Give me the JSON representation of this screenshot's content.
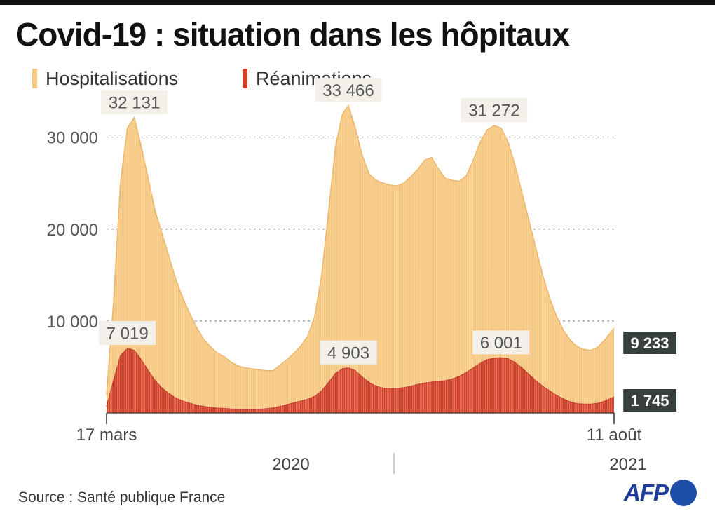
{
  "title": "Covid-19 : situation dans les hôpitaux",
  "legend": [
    {
      "label": "Hospitalisations",
      "color": "#f6c77f"
    },
    {
      "label": "Réanimations",
      "color": "#d2432a"
    }
  ],
  "source": "Source : Santé publique France",
  "logo": "AFP",
  "chart_data": {
    "type": "area",
    "title": "Covid-19 : situation dans les hôpitaux",
    "xlabel": "",
    "ylabel": "",
    "x_start": "2020-03-17",
    "x_end": "2021-08-11",
    "ylim": [
      0,
      36000
    ],
    "yticks": [
      {
        "value": 10000,
        "label": "10 000"
      },
      {
        "value": 20000,
        "label": "20 000"
      },
      {
        "value": 30000,
        "label": "30 000"
      }
    ],
    "grid": true,
    "xtick_labels": [
      {
        "date": "2020-03-17",
        "label": "17 mars"
      },
      {
        "date": "2021-08-11",
        "label": "11 août"
      }
    ],
    "year_labels": [
      {
        "date": "2020-07-15",
        "label": "2020"
      },
      {
        "date": "2021-08-11",
        "label": "2021"
      }
    ],
    "year_separator_date": "2021-01-01",
    "series": [
      {
        "name": "Hospitalisations",
        "color": "#f6c77f",
        "stroke": "#ebb15f",
        "points": [
          [
            "2020-03-17",
            2000
          ],
          [
            "2020-03-24",
            12000
          ],
          [
            "2020-03-31",
            25000
          ],
          [
            "2020-04-07",
            31000
          ],
          [
            "2020-04-14",
            32131
          ],
          [
            "2020-04-21",
            29000
          ],
          [
            "2020-04-28",
            25500
          ],
          [
            "2020-05-05",
            22000
          ],
          [
            "2020-05-12",
            19500
          ],
          [
            "2020-05-19",
            17000
          ],
          [
            "2020-05-26",
            14500
          ],
          [
            "2020-06-02",
            12500
          ],
          [
            "2020-06-09",
            10800
          ],
          [
            "2020-06-16",
            9300
          ],
          [
            "2020-06-23",
            8000
          ],
          [
            "2020-06-30",
            7200
          ],
          [
            "2020-07-07",
            6500
          ],
          [
            "2020-07-14",
            6100
          ],
          [
            "2020-07-21",
            5500
          ],
          [
            "2020-07-28",
            5100
          ],
          [
            "2020-08-04",
            4900
          ],
          [
            "2020-08-11",
            4800
          ],
          [
            "2020-08-18",
            4700
          ],
          [
            "2020-08-25",
            4600
          ],
          [
            "2020-09-01",
            4600
          ],
          [
            "2020-09-08",
            5200
          ],
          [
            "2020-09-15",
            5800
          ],
          [
            "2020-09-22",
            6500
          ],
          [
            "2020-09-29",
            7300
          ],
          [
            "2020-10-06",
            8400
          ],
          [
            "2020-10-13",
            10500
          ],
          [
            "2020-10-20",
            15000
          ],
          [
            "2020-10-27",
            22000
          ],
          [
            "2020-11-03",
            29000
          ],
          [
            "2020-11-10",
            32500
          ],
          [
            "2020-11-16",
            33466
          ],
          [
            "2020-11-23",
            31000
          ],
          [
            "2020-11-30",
            28000
          ],
          [
            "2020-12-07",
            26000
          ],
          [
            "2020-12-14",
            25300
          ],
          [
            "2020-12-21",
            25000
          ],
          [
            "2020-12-28",
            24800
          ],
          [
            "2021-01-04",
            24700
          ],
          [
            "2021-01-11",
            25000
          ],
          [
            "2021-01-18",
            25700
          ],
          [
            "2021-01-25",
            26500
          ],
          [
            "2021-02-01",
            27500
          ],
          [
            "2021-02-08",
            27800
          ],
          [
            "2021-02-15",
            26500
          ],
          [
            "2021-02-22",
            25500
          ],
          [
            "2021-03-01",
            25300
          ],
          [
            "2021-03-08",
            25200
          ],
          [
            "2021-03-15",
            25800
          ],
          [
            "2021-03-22",
            27500
          ],
          [
            "2021-03-29",
            29500
          ],
          [
            "2021-04-05",
            30800
          ],
          [
            "2021-04-12",
            31272
          ],
          [
            "2021-04-19",
            31000
          ],
          [
            "2021-04-26",
            29500
          ],
          [
            "2021-05-03",
            27000
          ],
          [
            "2021-05-10",
            24000
          ],
          [
            "2021-05-17",
            21000
          ],
          [
            "2021-05-24",
            18000
          ],
          [
            "2021-05-31",
            15000
          ],
          [
            "2021-06-07",
            12500
          ],
          [
            "2021-06-14",
            10500
          ],
          [
            "2021-06-21",
            9000
          ],
          [
            "2021-06-28",
            7900
          ],
          [
            "2021-07-05",
            7200
          ],
          [
            "2021-07-12",
            6900
          ],
          [
            "2021-07-19",
            6800
          ],
          [
            "2021-07-26",
            7200
          ],
          [
            "2021-08-02",
            8000
          ],
          [
            "2021-08-11",
            9233
          ]
        ],
        "peak_labels": [
          {
            "date": "2020-04-14",
            "value": 32131,
            "label": "32 131"
          },
          {
            "date": "2020-11-16",
            "value": 33466,
            "label": "33 466"
          },
          {
            "date": "2021-04-12",
            "value": 31272,
            "label": "31 272"
          }
        ],
        "end_label": "9 233"
      },
      {
        "name": "Réanimations",
        "color": "#d2432a",
        "stroke": "#c0331f",
        "points": [
          [
            "2020-03-17",
            700
          ],
          [
            "2020-03-24",
            3500
          ],
          [
            "2020-03-31",
            6200
          ],
          [
            "2020-04-07",
            7019
          ],
          [
            "2020-04-14",
            6800
          ],
          [
            "2020-04-21",
            5800
          ],
          [
            "2020-04-28",
            4600
          ],
          [
            "2020-05-05",
            3500
          ],
          [
            "2020-05-12",
            2700
          ],
          [
            "2020-05-19",
            2100
          ],
          [
            "2020-05-26",
            1600
          ],
          [
            "2020-06-02",
            1300
          ],
          [
            "2020-06-09",
            1050
          ],
          [
            "2020-06-16",
            850
          ],
          [
            "2020-06-23",
            700
          ],
          [
            "2020-06-30",
            600
          ],
          [
            "2020-07-07",
            520
          ],
          [
            "2020-07-14",
            480
          ],
          [
            "2020-07-21",
            420
          ],
          [
            "2020-07-28",
            390
          ],
          [
            "2020-08-04",
            380
          ],
          [
            "2020-08-11",
            380
          ],
          [
            "2020-08-18",
            400
          ],
          [
            "2020-08-25",
            450
          ],
          [
            "2020-09-01",
            550
          ],
          [
            "2020-09-08",
            700
          ],
          [
            "2020-09-15",
            900
          ],
          [
            "2020-09-22",
            1100
          ],
          [
            "2020-09-29",
            1300
          ],
          [
            "2020-10-06",
            1500
          ],
          [
            "2020-10-13",
            1800
          ],
          [
            "2020-10-20",
            2400
          ],
          [
            "2020-10-27",
            3300
          ],
          [
            "2020-11-03",
            4300
          ],
          [
            "2020-11-10",
            4800
          ],
          [
            "2020-11-16",
            4903
          ],
          [
            "2020-11-23",
            4600
          ],
          [
            "2020-11-30",
            3900
          ],
          [
            "2020-12-07",
            3300
          ],
          [
            "2020-12-14",
            2900
          ],
          [
            "2020-12-21",
            2700
          ],
          [
            "2020-12-28",
            2650
          ],
          [
            "2021-01-04",
            2650
          ],
          [
            "2021-01-11",
            2750
          ],
          [
            "2021-01-18",
            2900
          ],
          [
            "2021-01-25",
            3100
          ],
          [
            "2021-02-01",
            3250
          ],
          [
            "2021-02-08",
            3350
          ],
          [
            "2021-02-15",
            3400
          ],
          [
            "2021-02-22",
            3500
          ],
          [
            "2021-03-01",
            3700
          ],
          [
            "2021-03-08",
            4000
          ],
          [
            "2021-03-15",
            4400
          ],
          [
            "2021-03-22",
            4900
          ],
          [
            "2021-03-29",
            5400
          ],
          [
            "2021-04-05",
            5800
          ],
          [
            "2021-04-12",
            5950
          ],
          [
            "2021-04-19",
            6001
          ],
          [
            "2021-04-26",
            5900
          ],
          [
            "2021-05-03",
            5500
          ],
          [
            "2021-05-10",
            4900
          ],
          [
            "2021-05-17",
            4200
          ],
          [
            "2021-05-24",
            3500
          ],
          [
            "2021-05-31",
            2900
          ],
          [
            "2021-06-07",
            2400
          ],
          [
            "2021-06-14",
            1900
          ],
          [
            "2021-06-21",
            1500
          ],
          [
            "2021-06-28",
            1200
          ],
          [
            "2021-07-05",
            1000
          ],
          [
            "2021-07-12",
            950
          ],
          [
            "2021-07-19",
            950
          ],
          [
            "2021-07-26",
            1050
          ],
          [
            "2021-08-02",
            1300
          ],
          [
            "2021-08-11",
            1745
          ]
        ],
        "peak_labels": [
          {
            "date": "2020-04-07",
            "value": 7019,
            "label": "7 019"
          },
          {
            "date": "2020-11-16",
            "value": 4903,
            "label": "4 903"
          },
          {
            "date": "2021-04-19",
            "value": 6001,
            "label": "6 001"
          }
        ],
        "end_label": "1 745"
      }
    ]
  }
}
